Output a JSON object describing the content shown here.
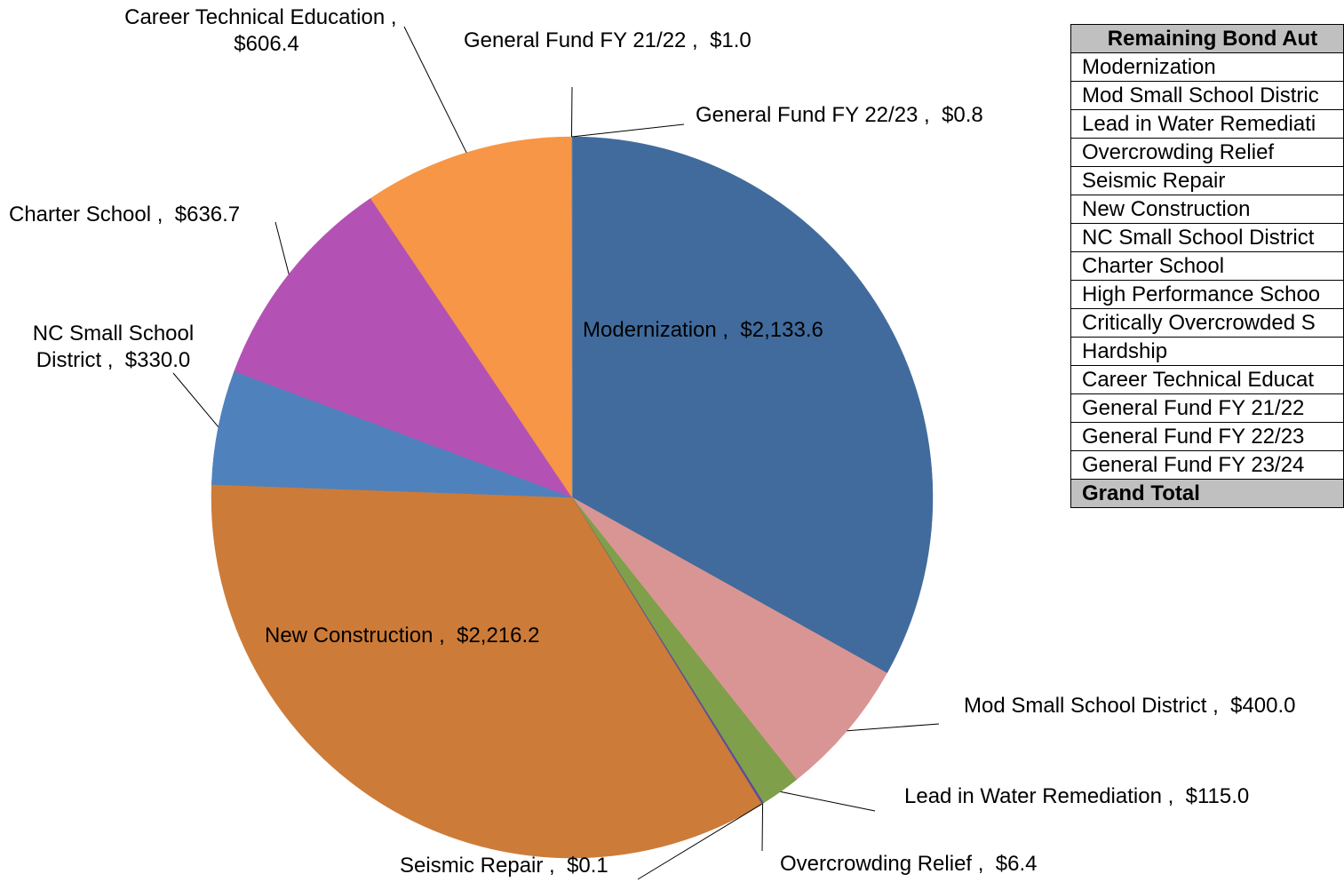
{
  "chart_data": {
    "type": "pie",
    "categories": [
      "Modernization",
      "Mod Small School District",
      "Lead in Water Remediation",
      "Overcrowding Relief",
      "Seismic Repair",
      "New Construction",
      "NC Small School District",
      "Charter School",
      "Career Technical Education",
      "General Fund FY 21/22",
      "General Fund FY 22/23"
    ],
    "values": [
      2133.6,
      400.0,
      115.0,
      6.4,
      0.1,
      2216.2,
      330.0,
      636.7,
      606.4,
      1.0,
      0.8
    ],
    "value_labels": [
      "$2,133.6",
      "$400.0",
      "$115.0",
      "$6.4",
      "$0.1",
      "$2,216.2",
      "$330.0",
      "$636.7",
      "$606.4",
      "$1.0",
      "$0.8"
    ],
    "label_separator": " ,  ",
    "colors": [
      "#416b9c",
      "#d99594",
      "#7f9f4b",
      "#5b4d9a",
      "#4b4b9a",
      "#cd7b38",
      "#4f81bd",
      "#b352b4",
      "#f79646",
      "#8e8e8e",
      "#a0a0a0"
    ]
  },
  "table": {
    "header": "Remaining Bond Aut",
    "rows": [
      "Modernization",
      "Mod Small School Distric",
      "Lead in Water Remediati",
      "Overcrowding Relief",
      "Seismic Repair",
      "New Construction",
      "NC Small School District",
      "Charter School",
      "High Performance Schoo",
      "Critically Overcrowded S",
      "Hardship",
      "Career Technical Educat",
      "General Fund FY 21/22",
      "General Fund FY 22/23",
      "General Fund FY 23/24"
    ],
    "total": "Grand Total"
  }
}
